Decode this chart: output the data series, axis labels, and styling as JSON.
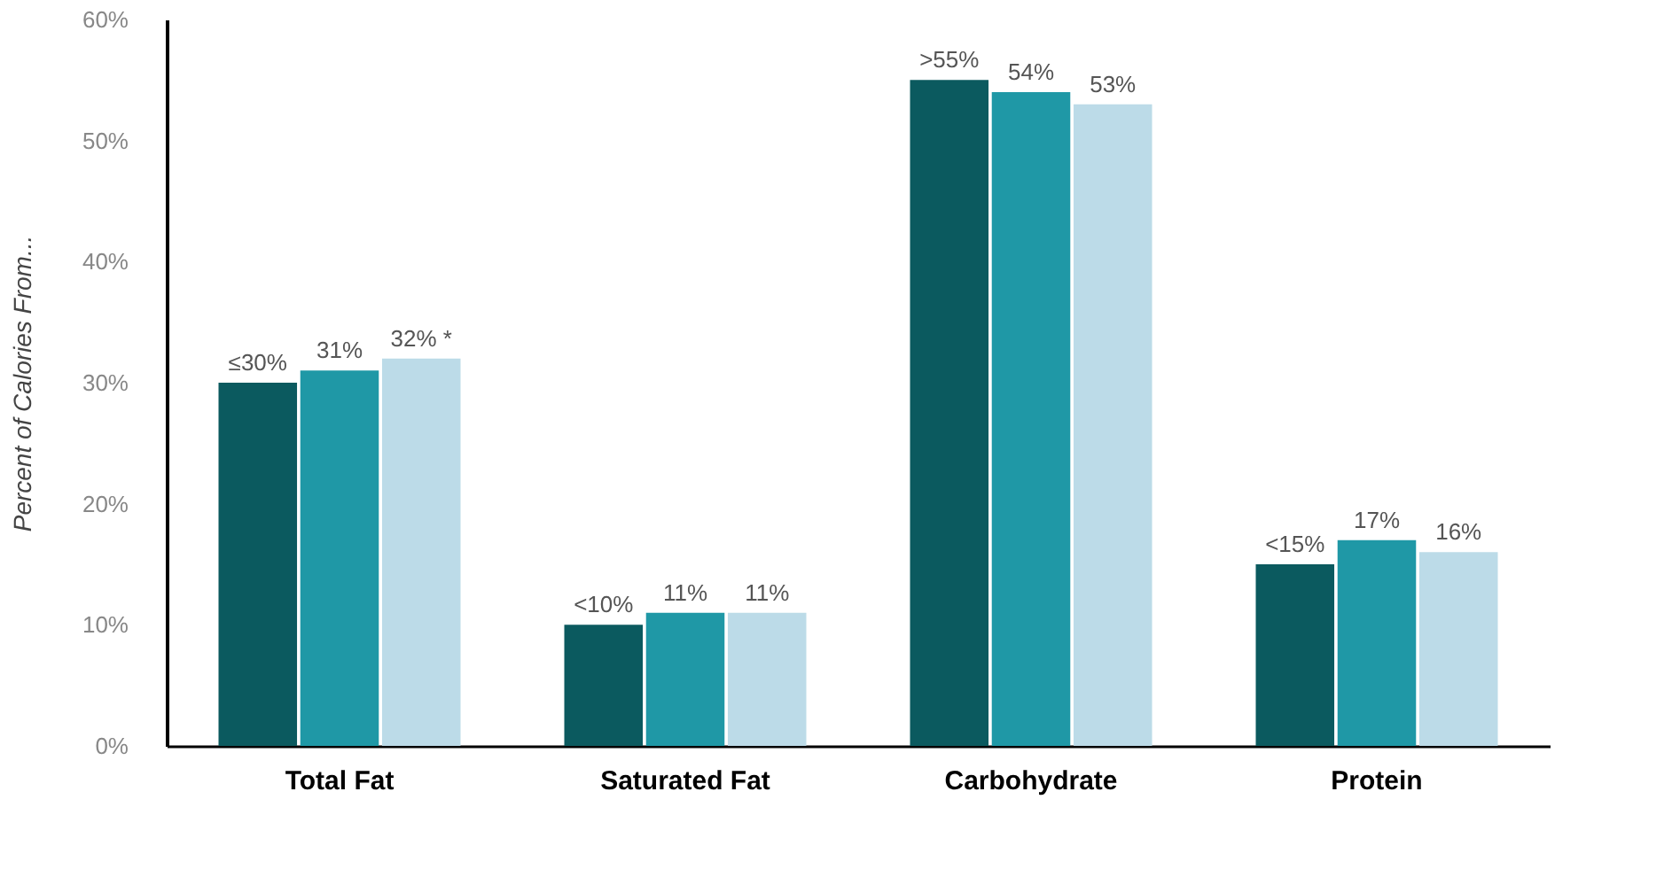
{
  "chart_data": {
    "type": "bar",
    "ylabel": "Percent of Calories From...",
    "categories": [
      "Total  Fat",
      "Saturated  Fat",
      "Carbohydrate",
      "Protein"
    ],
    "series": [
      {
        "color": "#0b5a5f",
        "values": [
          30,
          10,
          55,
          15
        ],
        "value_labels": [
          "≤30%",
          "<10%",
          ">55%",
          "<15%"
        ]
      },
      {
        "color": "#1f98a6",
        "values": [
          31,
          11,
          54,
          17
        ],
        "value_labels": [
          "31%",
          "11%",
          "54%",
          "17%"
        ]
      },
      {
        "color": "#bcdbe8",
        "values": [
          32,
          11,
          53,
          16
        ],
        "value_labels": [
          "32% *",
          "11%",
          "53%",
          "16%"
        ]
      }
    ],
    "ylim": [
      0,
      60
    ],
    "yticks": [
      {
        "value": 0,
        "label": "0%"
      },
      {
        "value": 10,
        "label": "10%"
      },
      {
        "value": 20,
        "label": "20%"
      },
      {
        "value": 30,
        "label": "30%"
      },
      {
        "value": 40,
        "label": "40%"
      },
      {
        "value": 50,
        "label": "50%"
      },
      {
        "value": 60,
        "label": "60%"
      }
    ],
    "grid": false
  }
}
